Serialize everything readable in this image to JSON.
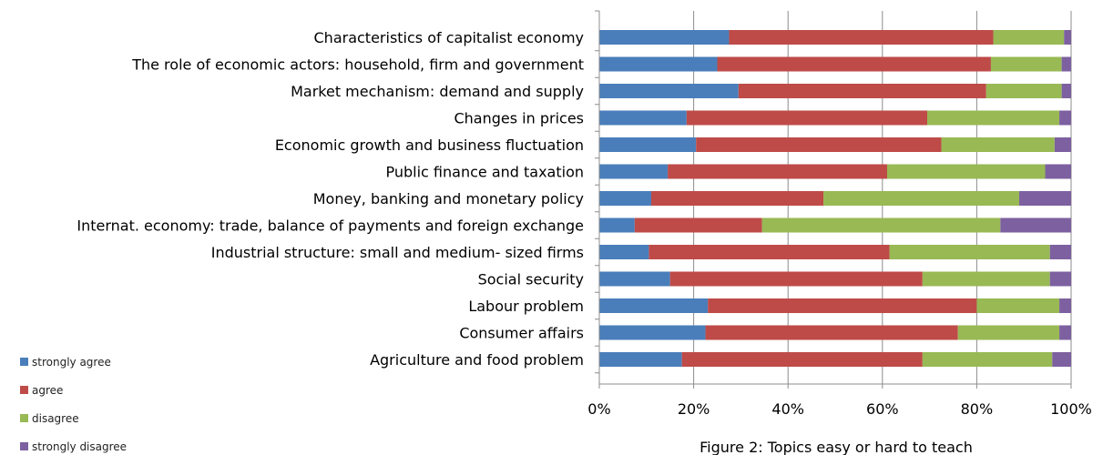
{
  "chart_data": {
    "type": "bar",
    "orientation": "horizontal",
    "stacked": "percent",
    "caption": "Figure 2: Topics easy or hard to teach",
    "categories": [
      "Characteristics of capitalist economy",
      "The role of economic actors: household, firm and government",
      "Market mechanism: demand and supply",
      "Changes in prices",
      "Economic growth and business fluctuation",
      "Public finance and taxation",
      "Money, banking and monetary policy",
      "Internat. economy: trade, balance of payments and foreign exchange",
      "Industrial structure: small and medium- sized firms",
      "Social security",
      "Labour problem",
      "Consumer affairs",
      "Agriculture and food problem"
    ],
    "series": [
      {
        "name": "strongly agree",
        "color": "#4a7ebb",
        "values": [
          27.5,
          25,
          29.5,
          18.5,
          20.5,
          14.5,
          11,
          7.5,
          10.5,
          15,
          23,
          22.5,
          17.5
        ]
      },
      {
        "name": "agree",
        "color": "#be4b48",
        "values": [
          56,
          58,
          52.5,
          51,
          52,
          46.5,
          36.5,
          27,
          51,
          53.5,
          57,
          53.5,
          51
        ]
      },
      {
        "name": "disagree",
        "color": "#98b954",
        "values": [
          15,
          15,
          16,
          28,
          24,
          33.5,
          41.5,
          50.5,
          34,
          27,
          17.5,
          21.5,
          27.5
        ]
      },
      {
        "name": "strongly disagree",
        "color": "#7d60a0",
        "values": [
          1.5,
          2,
          2,
          2.5,
          3.5,
          5.5,
          11,
          15,
          4.5,
          4.5,
          2.5,
          2.5,
          4
        ]
      }
    ],
    "x_ticks": [
      "0%",
      "20%",
      "40%",
      "60%",
      "80%",
      "100%"
    ],
    "xlim": [
      0,
      100
    ],
    "grid": true,
    "legend_position": "bottom-left"
  }
}
